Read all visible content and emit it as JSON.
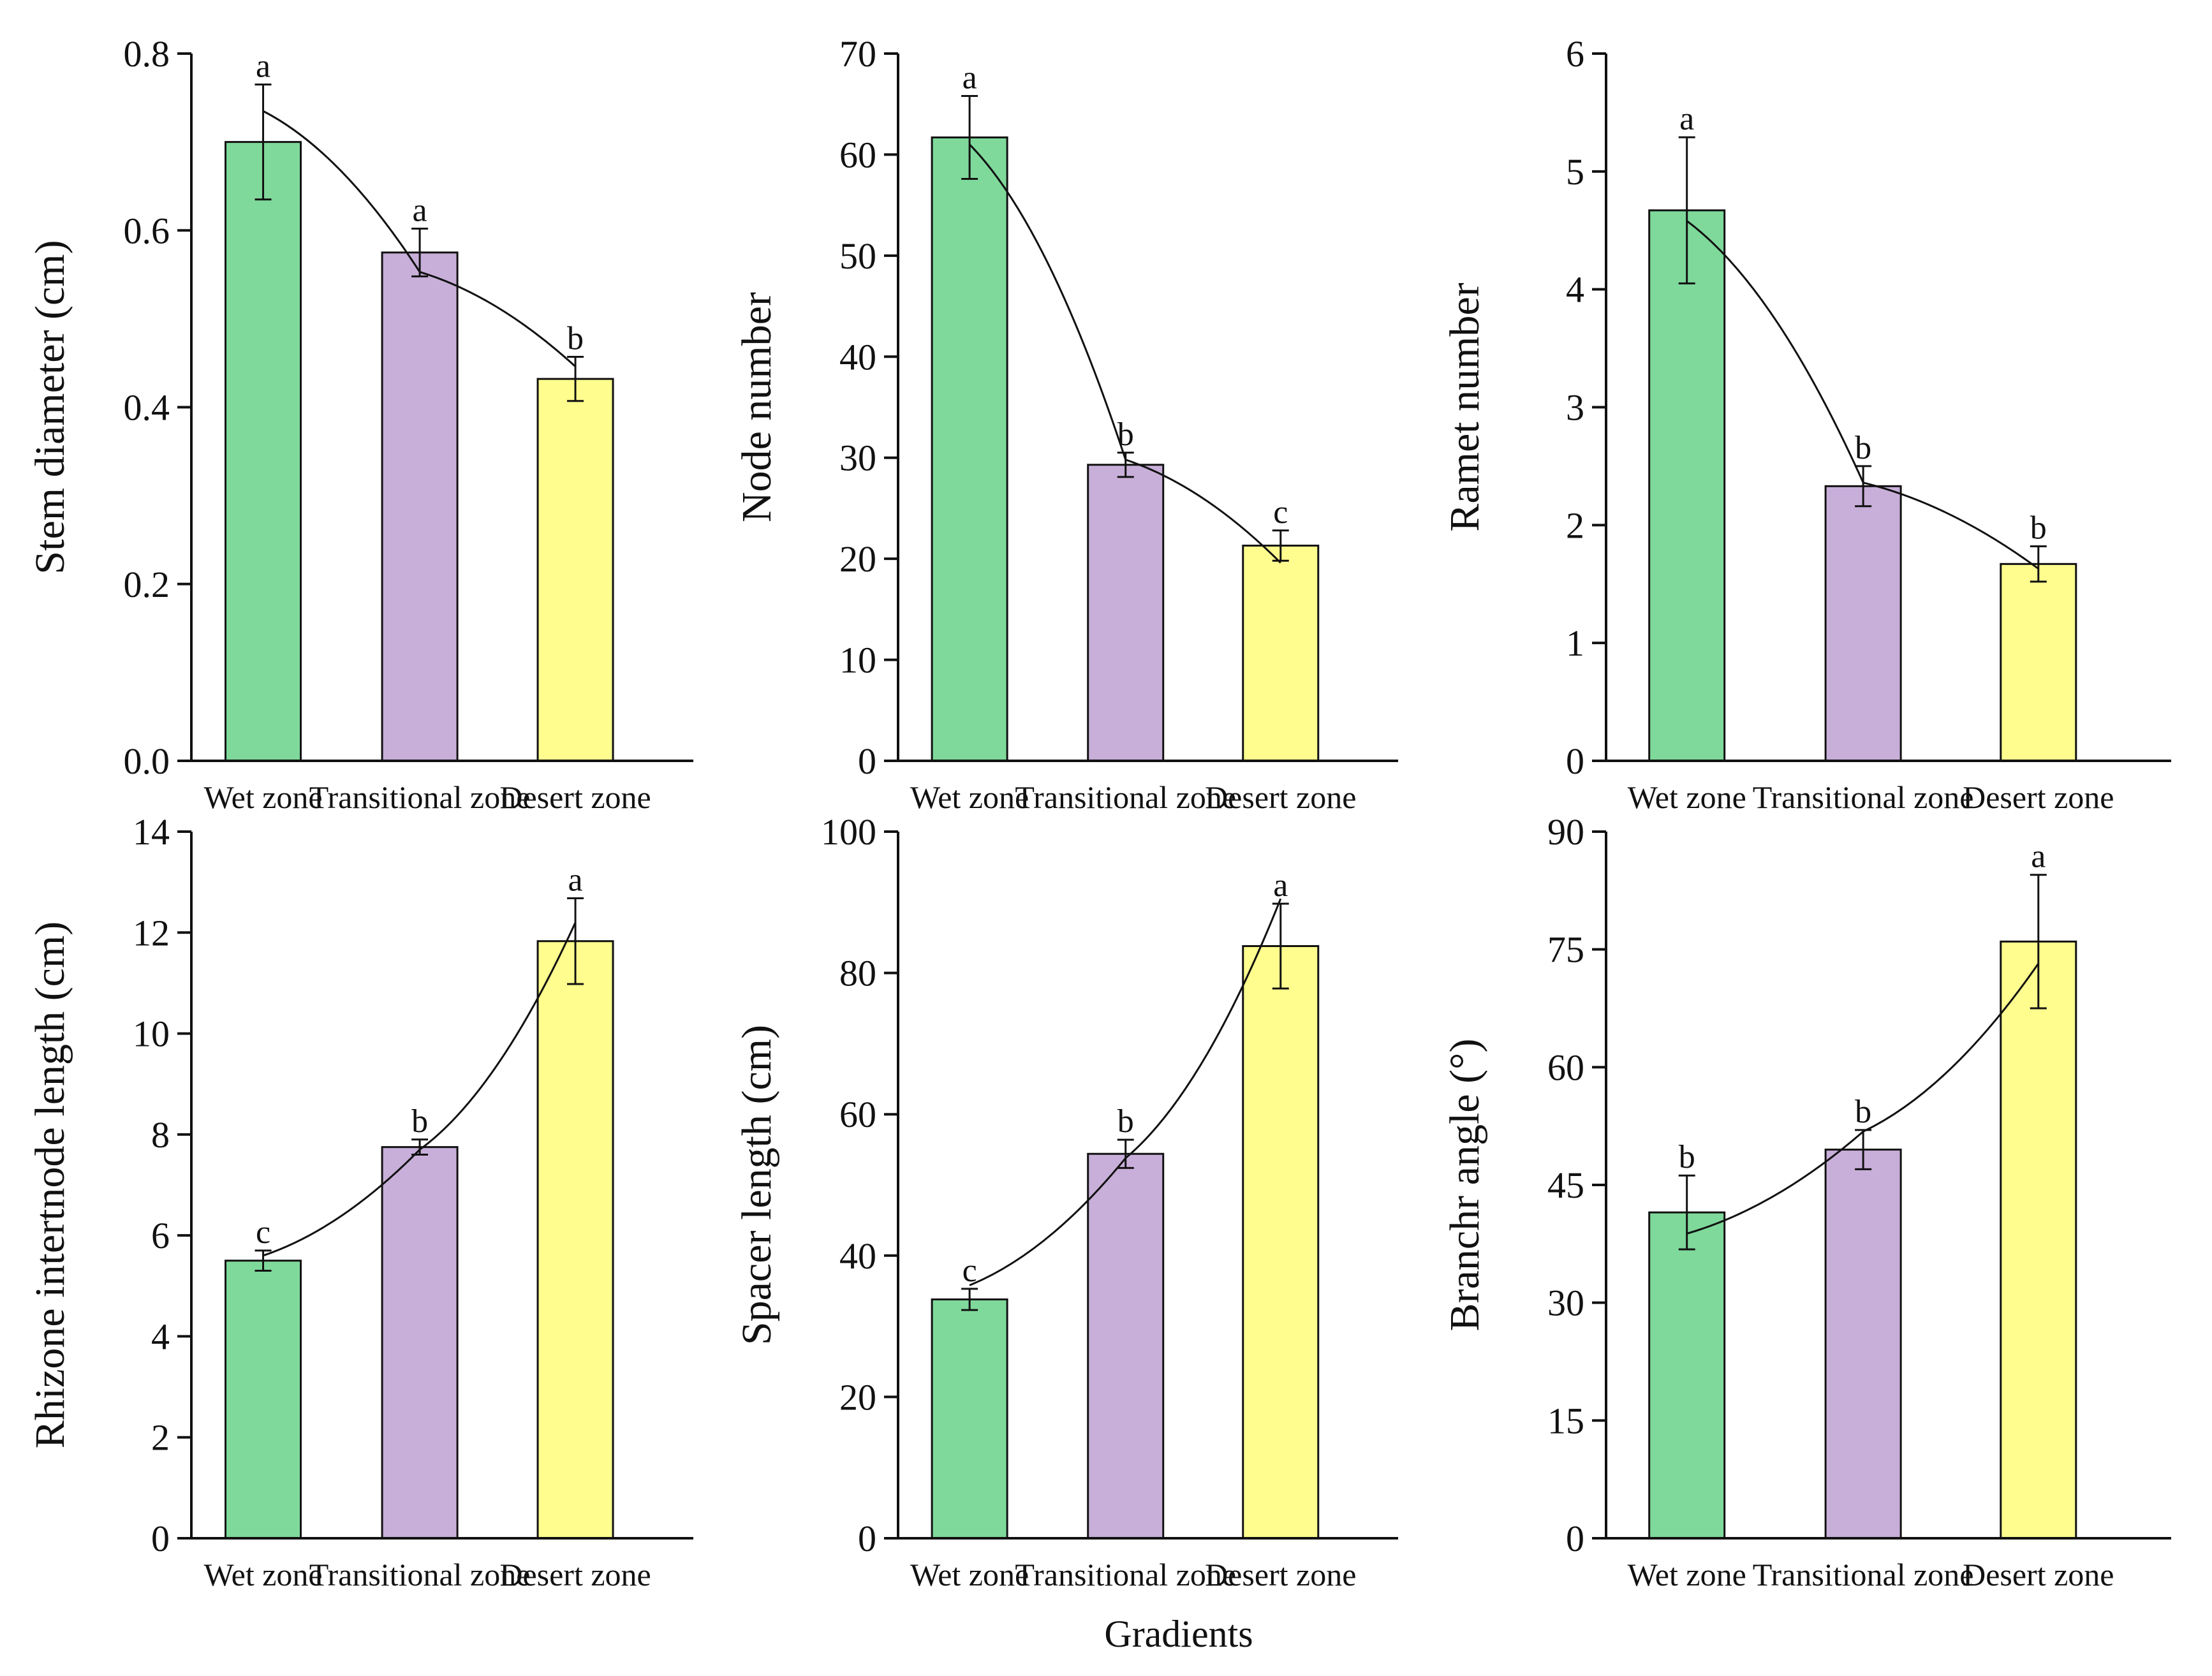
{
  "figure": {
    "xlabel": "Gradients"
  },
  "colors": {
    "wet": "#7fd99b",
    "transitional": "#c8afd9",
    "desert": "#fefd8e",
    "axis": "#111111"
  },
  "chart_data": [
    {
      "type": "bar",
      "categories": [
        "Wet zone",
        "Transitional zone",
        "Desert zone"
      ],
      "values": [
        0.7,
        0.575,
        0.432
      ],
      "errors": [
        0.065,
        0.027,
        0.025
      ],
      "letters": [
        "a",
        "a",
        "b"
      ],
      "ylabel": "Stem diameter (cm)",
      "ylim": [
        0,
        0.8
      ],
      "yticks": [
        0,
        0.2,
        0.4,
        0.6,
        0.8
      ],
      "ytick_labels": [
        "0.0",
        "0.2",
        "0.4",
        "0.6",
        "0.8"
      ],
      "trend": [
        0.735,
        0.553,
        0.446
      ]
    },
    {
      "type": "bar",
      "categories": [
        "Wet zone",
        "Transitional zone",
        "Desert zone"
      ],
      "values": [
        61.7,
        29.3,
        21.3
      ],
      "errors": [
        4.1,
        1.2,
        1.5
      ],
      "letters": [
        "a",
        "b",
        "c"
      ],
      "ylabel": "Node number",
      "ylim": [
        0,
        70
      ],
      "yticks": [
        0,
        10,
        20,
        30,
        40,
        50,
        60,
        70
      ],
      "ytick_labels": [
        "0",
        "10",
        "20",
        "30",
        "40",
        "50",
        "60",
        "70"
      ],
      "trend": [
        61.0,
        29.8,
        19.6
      ]
    },
    {
      "type": "bar",
      "categories": [
        "Wet zone",
        "Transitional zone",
        "Desert zone"
      ],
      "values": [
        4.67,
        2.33,
        1.67
      ],
      "errors": [
        0.62,
        0.17,
        0.15
      ],
      "letters": [
        "a",
        "b",
        "b"
      ],
      "ylabel": "Ramet number",
      "ylim": [
        0,
        6
      ],
      "yticks": [
        0,
        1,
        2,
        3,
        4,
        5,
        6
      ],
      "ytick_labels": [
        "0",
        "1",
        "2",
        "3",
        "4",
        "5",
        "6"
      ],
      "trend": [
        4.58,
        2.36,
        1.63
      ]
    },
    {
      "type": "bar",
      "categories": [
        "Wet zone",
        "Transitional zone",
        "Desert zone"
      ],
      "values": [
        5.5,
        7.75,
        11.83
      ],
      "errors": [
        0.2,
        0.15,
        0.85
      ],
      "letters": [
        "c",
        "b",
        "a"
      ],
      "ylabel": "Rhizone intertnode length (cm)",
      "ylim": [
        0,
        14
      ],
      "yticks": [
        0,
        2,
        4,
        6,
        8,
        10,
        12,
        14
      ],
      "ytick_labels": [
        "0",
        "2",
        "4",
        "6",
        "8",
        "10",
        "12",
        "14"
      ],
      "trend": [
        5.6,
        7.7,
        12.2
      ]
    },
    {
      "type": "bar",
      "categories": [
        "Wet zone",
        "Transitional zone",
        "Desert zone"
      ],
      "values": [
        33.8,
        54.4,
        83.8
      ],
      "errors": [
        1.5,
        2.0,
        6.0
      ],
      "letters": [
        "c",
        "b",
        "a"
      ],
      "ylabel": "Spacer length (cm)",
      "ylim": [
        0,
        100
      ],
      "yticks": [
        0,
        20,
        40,
        60,
        80,
        100
      ],
      "ytick_labels": [
        "0",
        "20",
        "40",
        "60",
        "80",
        "100"
      ],
      "trend": [
        35.8,
        53.8,
        90.5
      ]
    },
    {
      "type": "bar",
      "categories": [
        "Wet zone",
        "Transitional zone",
        "Desert zone"
      ],
      "values": [
        41.5,
        49.5,
        76.0
      ],
      "errors": [
        4.7,
        2.5,
        8.5
      ],
      "letters": [
        "b",
        "b",
        "a"
      ],
      "ylabel": "Branchr angle (°)",
      "ylim": [
        0,
        90
      ],
      "yticks": [
        0,
        15,
        30,
        45,
        60,
        75,
        90
      ],
      "ytick_labels": [
        "0",
        "15",
        "30",
        "45",
        "60",
        "75",
        "90"
      ],
      "trend": [
        38.8,
        51.8,
        73.2
      ]
    }
  ]
}
